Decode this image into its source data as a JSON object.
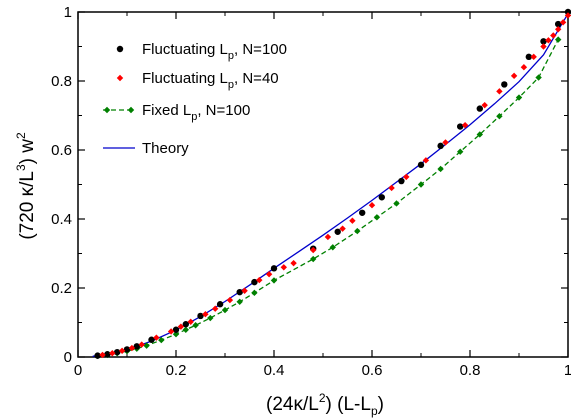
{
  "chart_data": {
    "type": "scatter",
    "xlabel": {
      "main": "(24κ/L",
      "sup": "2",
      "mid": ") (L-L",
      "sub": "p",
      "end": ")"
    },
    "ylabel": {
      "main": "(720 κ/L",
      "sup": "3",
      "mid": ")  w",
      "sup2": "2"
    },
    "xlim": [
      0,
      1
    ],
    "ylim": [
      0,
      1
    ],
    "x_ticks": [
      "0",
      "0.2",
      "0.4",
      "0.6",
      "0.8",
      "1"
    ],
    "y_ticks": [
      "0",
      "0.2",
      "0.4",
      "0.6",
      "0.8",
      "1"
    ],
    "x_tick_values": [
      0,
      0.2,
      0.4,
      0.6,
      0.8,
      1
    ],
    "y_tick_values": [
      0,
      0.2,
      0.4,
      0.6,
      0.8,
      1
    ],
    "legend_position": "top-left",
    "series": [
      {
        "name": {
          "main": "Fluctuating L",
          "sub": "p",
          "rest": ", N=100"
        },
        "style": "markers",
        "marker": "circle",
        "color": "#000000",
        "x": [
          0.04,
          0.06,
          0.08,
          0.1,
          0.12,
          0.15,
          0.2,
          0.22,
          0.25,
          0.29,
          0.33,
          0.36,
          0.4,
          0.48,
          0.53,
          0.58,
          0.62,
          0.66,
          0.7,
          0.74,
          0.78,
          0.82,
          0.87,
          0.92,
          0.95,
          0.98,
          1.0
        ],
        "y": [
          0.004,
          0.008,
          0.014,
          0.022,
          0.031,
          0.05,
          0.079,
          0.095,
          0.119,
          0.153,
          0.188,
          0.217,
          0.257,
          0.314,
          0.363,
          0.418,
          0.463,
          0.51,
          0.557,
          0.612,
          0.668,
          0.72,
          0.79,
          0.87,
          0.915,
          0.965,
          1.0
        ]
      },
      {
        "name": {
          "main": "Fluctuating L",
          "sub": "p",
          "rest": ", N=40"
        },
        "style": "markers",
        "marker": "diamond",
        "color": "#ff0000",
        "x": [
          0.05,
          0.07,
          0.09,
          0.11,
          0.13,
          0.16,
          0.19,
          0.21,
          0.23,
          0.26,
          0.28,
          0.31,
          0.34,
          0.37,
          0.39,
          0.42,
          0.44,
          0.48,
          0.51,
          0.54,
          0.56,
          0.6,
          0.64,
          0.67,
          0.71,
          0.75,
          0.79,
          0.83,
          0.86,
          0.89,
          0.91,
          0.93,
          0.95,
          0.96,
          0.97,
          0.98,
          0.99,
          1.0
        ],
        "y": [
          0.006,
          0.011,
          0.018,
          0.026,
          0.036,
          0.056,
          0.074,
          0.088,
          0.102,
          0.124,
          0.14,
          0.165,
          0.192,
          0.223,
          0.24,
          0.26,
          0.272,
          0.31,
          0.348,
          0.372,
          0.395,
          0.44,
          0.49,
          0.522,
          0.57,
          0.622,
          0.672,
          0.73,
          0.77,
          0.815,
          0.84,
          0.87,
          0.9,
          0.918,
          0.932,
          0.95,
          0.97,
          0.99
        ]
      },
      {
        "name": {
          "main": "Fixed L",
          "sub": "p",
          "rest": ", N=100"
        },
        "style": "dashed-line-markers",
        "marker": "diamond",
        "color": "#008000",
        "x": [
          0.04,
          0.06,
          0.08,
          0.1,
          0.12,
          0.14,
          0.17,
          0.2,
          0.22,
          0.24,
          0.27,
          0.3,
          0.33,
          0.36,
          0.4,
          0.48,
          0.52,
          0.57,
          0.61,
          0.65,
          0.7,
          0.74,
          0.78,
          0.82,
          0.86,
          0.9,
          0.94,
          0.98
        ],
        "y": [
          0.003,
          0.006,
          0.011,
          0.017,
          0.024,
          0.033,
          0.049,
          0.066,
          0.079,
          0.092,
          0.113,
          0.136,
          0.16,
          0.186,
          0.222,
          0.284,
          0.318,
          0.365,
          0.405,
          0.445,
          0.5,
          0.545,
          0.595,
          0.645,
          0.698,
          0.752,
          0.81,
          0.92
        ]
      },
      {
        "name": {
          "main": "Theory",
          "sub": "",
          "rest": ""
        },
        "style": "line",
        "color": "#0000cc",
        "x": [
          0.03,
          0.05,
          0.08,
          0.1,
          0.15,
          0.2,
          0.25,
          0.3,
          0.35,
          0.4,
          0.45,
          0.5,
          0.55,
          0.6,
          0.65,
          0.7,
          0.75,
          0.8,
          0.85,
          0.9,
          0.95,
          1.0
        ],
        "y": [
          0.002,
          0.006,
          0.014,
          0.021,
          0.046,
          0.078,
          0.117,
          0.161,
          0.208,
          0.257,
          0.305,
          0.353,
          0.403,
          0.454,
          0.507,
          0.56,
          0.616,
          0.673,
          0.734,
          0.798,
          0.876,
          0.995
        ]
      }
    ]
  }
}
